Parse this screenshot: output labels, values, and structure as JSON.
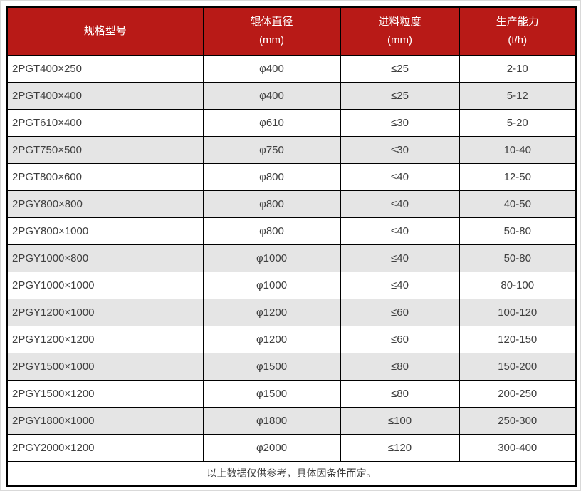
{
  "colors": {
    "header_bg": "#b81a17",
    "header_text": "#ffffff",
    "row_alt_bg": "#e5e5e5",
    "body_text": "#3f3f3f",
    "border": "#000000"
  },
  "table": {
    "headers": [
      {
        "title": "规格型号",
        "unit": ""
      },
      {
        "title": "辊体直径",
        "unit": "(mm)"
      },
      {
        "title": "进料粒度",
        "unit": "(mm)"
      },
      {
        "title": "生产能力",
        "unit": "(t/h)"
      }
    ],
    "rows": [
      {
        "model": "2PGT400×250",
        "diameter": "φ400",
        "feed_size": "≤25",
        "capacity": "2-10"
      },
      {
        "model": "2PGT400×400",
        "diameter": "φ400",
        "feed_size": "≤25",
        "capacity": "5-12"
      },
      {
        "model": "2PGT610×400",
        "diameter": "φ610",
        "feed_size": "≤30",
        "capacity": "5-20"
      },
      {
        "model": "2PGT750×500",
        "diameter": "φ750",
        "feed_size": "≤30",
        "capacity": "10-40"
      },
      {
        "model": "2PGT800×600",
        "diameter": "φ800",
        "feed_size": "≤40",
        "capacity": "12-50"
      },
      {
        "model": "2PGY800×800",
        "diameter": "φ800",
        "feed_size": "≤40",
        "capacity": "40-50"
      },
      {
        "model": "2PGY800×1000",
        "diameter": "φ800",
        "feed_size": "≤40",
        "capacity": "50-80"
      },
      {
        "model": "2PGY1000×800",
        "diameter": "φ1000",
        "feed_size": "≤40",
        "capacity": "50-80"
      },
      {
        "model": "2PGY1000×1000",
        "diameter": "φ1000",
        "feed_size": "≤40",
        "capacity": "80-100"
      },
      {
        "model": "2PGY1200×1000",
        "diameter": "φ1200",
        "feed_size": "≤60",
        "capacity": "100-120"
      },
      {
        "model": "2PGY1200×1200",
        "diameter": "φ1200",
        "feed_size": "≤60",
        "capacity": "120-150"
      },
      {
        "model": "2PGY1500×1000",
        "diameter": "φ1500",
        "feed_size": "≤80",
        "capacity": "150-200"
      },
      {
        "model": "2PGY1500×1200",
        "diameter": "φ1500",
        "feed_size": "≤80",
        "capacity": "200-250"
      },
      {
        "model": "2PGY1800×1000",
        "diameter": "φ1800",
        "feed_size": "≤100",
        "capacity": "250-300"
      },
      {
        "model": "2PGY2000×1200",
        "diameter": "φ2000",
        "feed_size": "≤120",
        "capacity": "300-400"
      }
    ],
    "footnote": "以上数据仅供参考，具体因条件而定。"
  }
}
